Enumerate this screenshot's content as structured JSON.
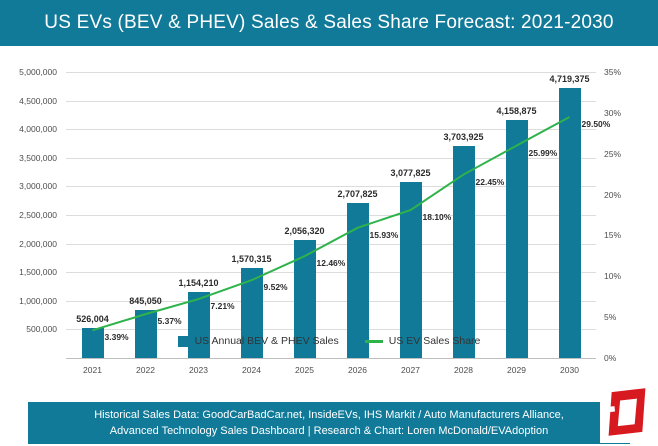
{
  "header": {
    "title": "US EVs (BEV & PHEV) Sales & Sales Share Forecast: 2021-2030"
  },
  "legend": {
    "bars_label": "US Annual BEV & PHEV Sales",
    "line_label": "US EV Sales Share"
  },
  "footer": {
    "line1": "Historical Sales Data: GoodCarBadCar.net, InsideEVs, IHS Markit / Auto Manufacturers Alliance,",
    "line2": "Advanced Technology Sales Dashboard | Research & Chart: Loren McDonald/EVAdoption"
  },
  "colors": {
    "teal": "#117a99",
    "green": "#2eb34b",
    "logo_red": "#d71920",
    "gridline": "#dcdcdc"
  },
  "chart_data": {
    "type": "bar",
    "subtype": "bar+line combo, secondary percent axis",
    "title": "US EVs (BEV & PHEV) Sales & Sales Share Forecast: 2021-2030",
    "categories": [
      "2021",
      "2022",
      "2023",
      "2024",
      "2025",
      "2026",
      "2027",
      "2028",
      "2029",
      "2030"
    ],
    "series": [
      {
        "name": "US Annual BEV & PHEV Sales",
        "type": "bar",
        "axis": "left",
        "values": [
          526004,
          845050,
          1154210,
          1570315,
          2056320,
          2707825,
          3077825,
          3703925,
          4158875,
          4719375
        ],
        "labels": [
          "526,004",
          "845,050",
          "1,154,210",
          "1,570,315",
          "2,056,320",
          "2,707,825",
          "3,077,825",
          "3,703,925",
          "4,158,875",
          "4,719,375"
        ]
      },
      {
        "name": "US EV Sales Share",
        "type": "line",
        "axis": "right",
        "values": [
          3.39,
          5.37,
          7.21,
          9.52,
          12.46,
          15.93,
          18.1,
          22.45,
          25.99,
          29.5
        ],
        "labels": [
          "3.39%",
          "5.37%",
          "7.21%",
          "9.52%",
          "12.46%",
          "15.93%",
          "18.10%",
          "22.45%",
          "25.99%",
          "29.50%"
        ]
      }
    ],
    "left_axis": {
      "min": 0,
      "max": 5000000,
      "step": 500000,
      "tick_labels": [
        "500,000",
        "1,000,000",
        "1,500,000",
        "2,000,000",
        "2,500,000",
        "3,000,000",
        "3,500,000",
        "4,000,000",
        "4,500,000",
        "5,000,000"
      ]
    },
    "right_axis": {
      "min": 0,
      "max": 35,
      "step": 5,
      "tick_labels": [
        "0%",
        "5%",
        "10%",
        "15%",
        "20%",
        "25%",
        "30%",
        "35%"
      ]
    },
    "grid": true,
    "legend_position": "bottom"
  }
}
